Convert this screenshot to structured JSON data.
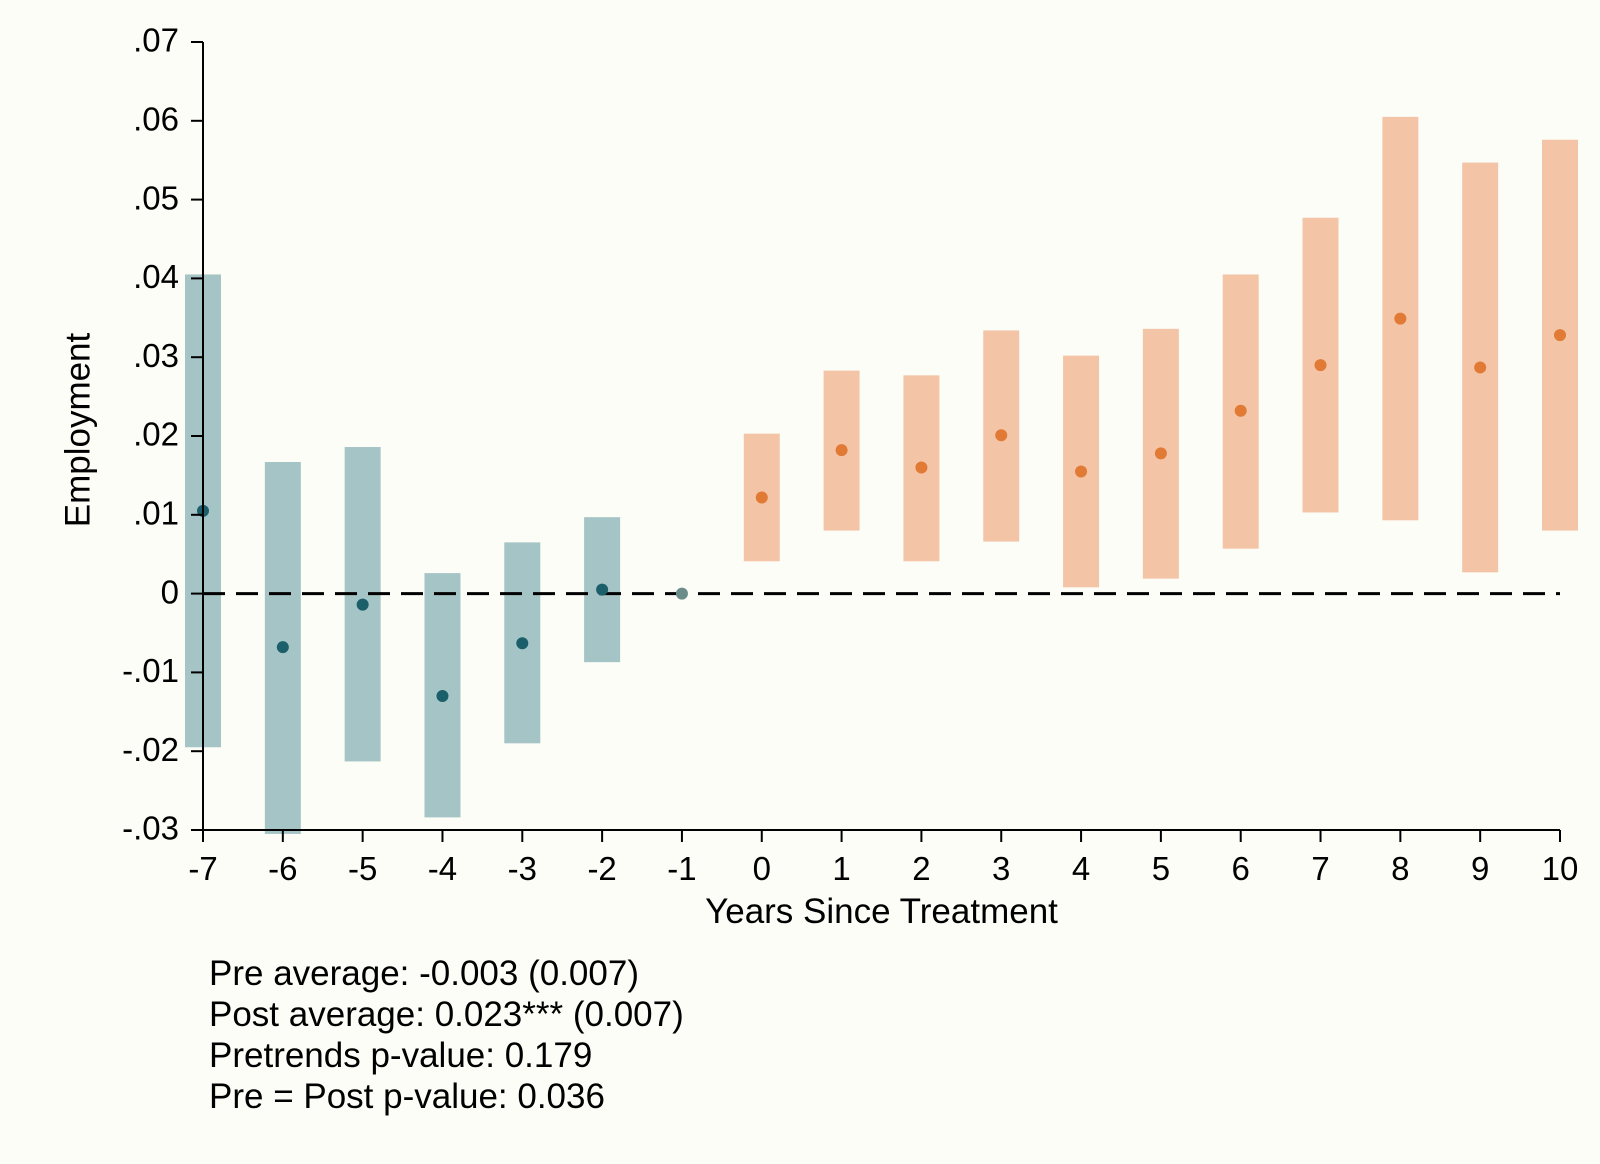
{
  "chart_data": {
    "type": "scatter",
    "xlabel": "Years Since Treatment",
    "ylabel": "Employment",
    "xlim": [
      -7,
      10
    ],
    "ylim": [
      -0.03,
      0.07
    ],
    "x_ticks": [
      -7,
      -6,
      -5,
      -4,
      -3,
      -2,
      -1,
      0,
      1,
      2,
      3,
      4,
      5,
      6,
      7,
      8,
      9,
      10
    ],
    "x_tick_labels": [
      "-7",
      "-6",
      "-5",
      "-4",
      "-3",
      "-2",
      "-1",
      "0",
      "1",
      "2",
      "3",
      "4",
      "5",
      "6",
      "7",
      "8",
      "9",
      "10"
    ],
    "y_ticks": [
      -0.03,
      -0.02,
      -0.01,
      0,
      0.01,
      0.02,
      0.03,
      0.04,
      0.05,
      0.06,
      0.07
    ],
    "y_tick_labels": [
      "-.03",
      "-.02",
      "-.01",
      "0",
      ".01",
      ".02",
      ".03",
      ".04",
      ".05",
      ".06",
      ".07"
    ],
    "reference_line": {
      "y": 0,
      "style": "dashed"
    },
    "grid": false,
    "series": [
      {
        "group": "pre",
        "color": "#1b5f6b",
        "band_color": "#a5c4c6",
        "x": [
          -7,
          -6,
          -5,
          -4,
          -3,
          -2
        ],
        "y": [
          0.0105,
          -0.0068,
          -0.0014,
          -0.013,
          -0.0063,
          0.0005
        ],
        "ci_low": [
          -0.0195,
          -0.0305,
          -0.0213,
          -0.0284,
          -0.019,
          -0.0087
        ],
        "ci_high": [
          0.0405,
          0.0167,
          0.0186,
          0.0026,
          0.0065,
          0.0097
        ]
      },
      {
        "group": "reference",
        "color": "#6a8d8a",
        "x": [
          -1
        ],
        "y": [
          0
        ]
      },
      {
        "group": "post",
        "color": "#e07a35",
        "band_color": "#f3c5a6",
        "x": [
          0,
          1,
          2,
          3,
          4,
          5,
          6,
          7,
          8,
          9,
          10
        ],
        "y": [
          0.0122,
          0.0182,
          0.016,
          0.0201,
          0.0155,
          0.0178,
          0.0232,
          0.029,
          0.0349,
          0.0287,
          0.0328
        ],
        "ci_low": [
          0.0041,
          0.008,
          0.0041,
          0.0066,
          0.0008,
          0.0019,
          0.0057,
          0.0103,
          0.0093,
          0.0027,
          0.008
        ],
        "ci_high": [
          0.0203,
          0.0283,
          0.0277,
          0.0334,
          0.0302,
          0.0336,
          0.0405,
          0.0477,
          0.0605,
          0.0547,
          0.0576
        ]
      }
    ]
  },
  "notes": {
    "pre_average": "Pre average: -0.003 (0.007)",
    "post_average": "Post average: 0.023*** (0.007)",
    "pretrends": "Pretrends p-value: 0.179",
    "pre_post": "Pre = Post p-value: 0.036"
  }
}
